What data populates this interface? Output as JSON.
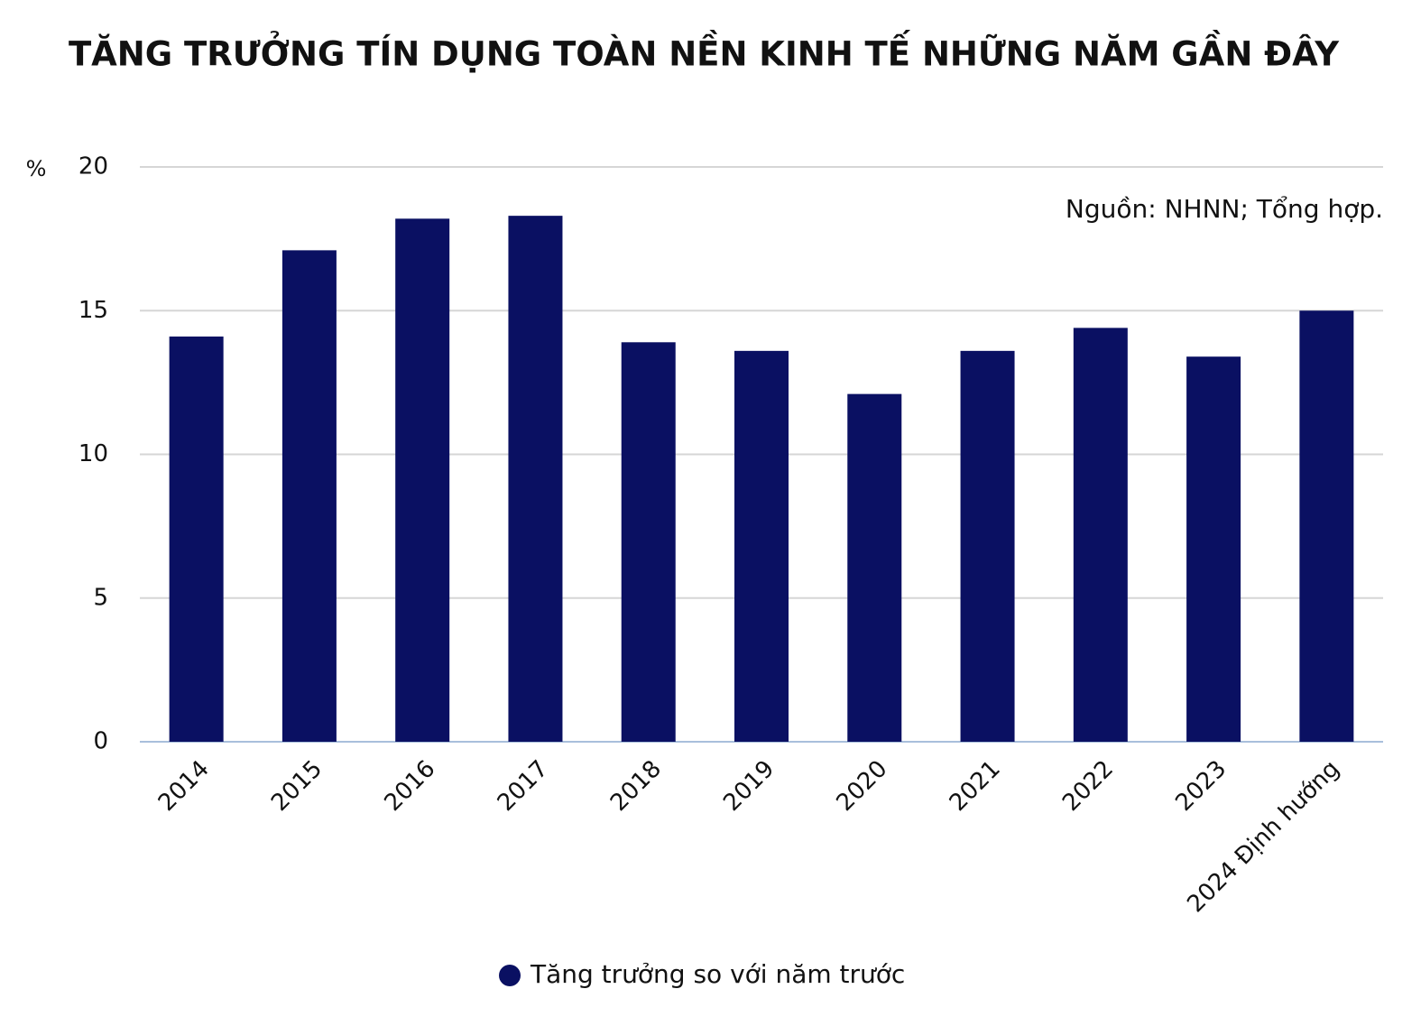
{
  "chart_data": {
    "type": "bar",
    "title": "TĂNG TRƯỞNG TÍN DỤNG TOÀN NỀN KINH TẾ NHỮNG NĂM GẦN ĐÂY",
    "y_label": "%",
    "annotation": "Nguồn: NHNN; Tổng hợp.",
    "categories": [
      "2014",
      "2015",
      "2016",
      "2017",
      "2018",
      "2019",
      "2020",
      "2021",
      "2022",
      "2023",
      "2024 Định hướng"
    ],
    "series": [
      {
        "name": "Tăng trưởng so với năm trước",
        "color": "#0a1062",
        "values": [
          14.1,
          17.1,
          18.2,
          18.3,
          13.9,
          13.6,
          12.1,
          13.6,
          14.4,
          13.4,
          15
        ]
      }
    ],
    "ylim": [
      0,
      20
    ],
    "yticks": [
      0,
      5,
      10,
      15,
      20
    ],
    "grid": true
  }
}
